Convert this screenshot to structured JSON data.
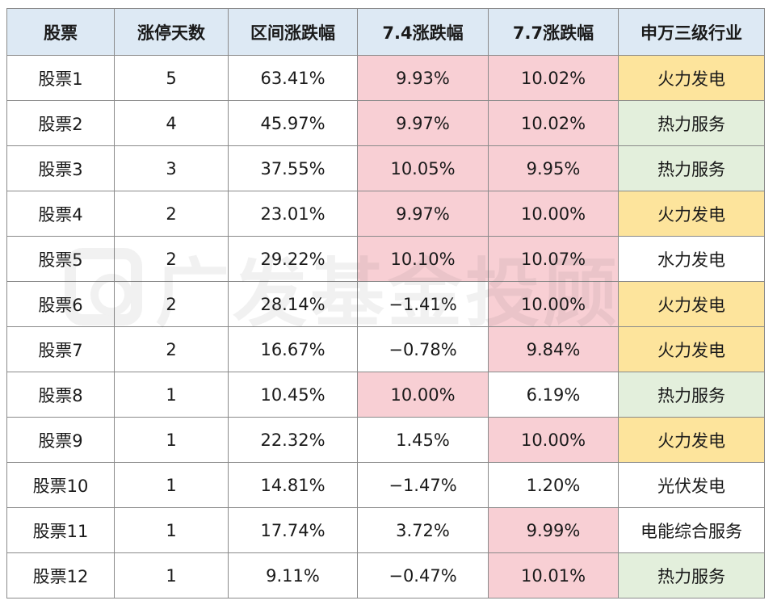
{
  "table": {
    "headers": [
      "股票",
      "涨停天数",
      "区间涨跌幅",
      "7.4涨跌幅",
      "7.7涨跌幅",
      "申万三级行业"
    ],
    "rows": [
      {
        "cells": [
          "股票1",
          "5",
          "63.41%",
          "9.93%",
          "10.02%",
          "火力发电"
        ],
        "fills": [
          "white",
          "white",
          "white",
          "pink",
          "pink",
          "yellow"
        ]
      },
      {
        "cells": [
          "股票2",
          "4",
          "45.97%",
          "9.97%",
          "10.02%",
          "热力服务"
        ],
        "fills": [
          "white",
          "white",
          "white",
          "pink",
          "pink",
          "green"
        ]
      },
      {
        "cells": [
          "股票3",
          "3",
          "37.55%",
          "10.05%",
          "9.95%",
          "热力服务"
        ],
        "fills": [
          "white",
          "white",
          "white",
          "pink",
          "pink",
          "green"
        ]
      },
      {
        "cells": [
          "股票4",
          "2",
          "23.01%",
          "9.97%",
          "10.00%",
          "火力发电"
        ],
        "fills": [
          "white",
          "white",
          "white",
          "pink",
          "pink",
          "yellow"
        ]
      },
      {
        "cells": [
          "股票5",
          "2",
          "29.22%",
          "10.10%",
          "10.07%",
          "水力发电"
        ],
        "fills": [
          "white",
          "white",
          "white",
          "pink",
          "pink",
          "white"
        ]
      },
      {
        "cells": [
          "股票6",
          "2",
          "28.14%",
          "−1.41%",
          "10.00%",
          "火力发电"
        ],
        "fills": [
          "white",
          "white",
          "white",
          "white",
          "pink",
          "yellow"
        ]
      },
      {
        "cells": [
          "股票7",
          "2",
          "16.67%",
          "−0.78%",
          "9.84%",
          "火力发电"
        ],
        "fills": [
          "white",
          "white",
          "white",
          "white",
          "pink",
          "yellow"
        ]
      },
      {
        "cells": [
          "股票8",
          "1",
          "10.45%",
          "10.00%",
          "6.19%",
          "热力服务"
        ],
        "fills": [
          "white",
          "white",
          "white",
          "pink",
          "white",
          "green"
        ]
      },
      {
        "cells": [
          "股票9",
          "1",
          "22.32%",
          "1.45%",
          "10.00%",
          "火力发电"
        ],
        "fills": [
          "white",
          "white",
          "white",
          "white",
          "pink",
          "yellow"
        ]
      },
      {
        "cells": [
          "股票10",
          "1",
          "14.81%",
          "−1.47%",
          "1.20%",
          "光伏发电"
        ],
        "fills": [
          "white",
          "white",
          "white",
          "white",
          "white",
          "white"
        ]
      },
      {
        "cells": [
          "股票11",
          "1",
          "17.74%",
          "3.72%",
          "9.99%",
          "电能综合服务"
        ],
        "fills": [
          "white",
          "white",
          "white",
          "white",
          "pink",
          "white"
        ]
      },
      {
        "cells": [
          "股票12",
          "1",
          "9.11%",
          "−0.47%",
          "10.01%",
          "热力服务"
        ],
        "fills": [
          "white",
          "white",
          "white",
          "white",
          "pink",
          "green"
        ]
      }
    ]
  },
  "colors": {
    "header_bg": "#dde9f4",
    "limit_up_pink": "#f8cfd4",
    "thermal_power_yellow": "#fde49c",
    "heat_service_green": "#e3efdc",
    "border": "#8a8a8a"
  },
  "watermark": {
    "text": "广发基金投顾",
    "icon": "gf-logo-icon"
  }
}
